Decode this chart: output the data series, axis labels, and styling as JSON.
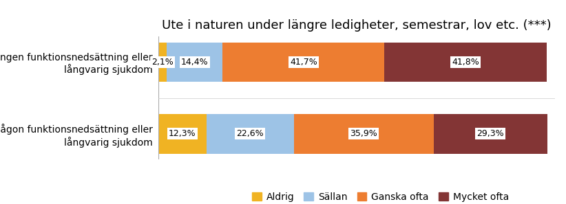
{
  "title": "Ute i naturen under längre ledigheter, semestrar, lov etc. (***)",
  "categories": [
    "Någon funktionsnedsättning eller\nlångvarig sjukdom",
    "Ingen funktionsnedsättning eller\nlångvarig sjukdom"
  ],
  "series_names": [
    "Aldrig",
    "Sällan",
    "Ganska ofta",
    "Mycket ofta"
  ],
  "series": {
    "Aldrig": [
      12.3,
      2.1
    ],
    "Sällan": [
      22.6,
      14.4
    ],
    "Ganska ofta": [
      35.9,
      41.7
    ],
    "Mycket ofta": [
      29.3,
      41.8
    ]
  },
  "colors": {
    "Aldrig": "#f0b323",
    "Sällan": "#9dc3e6",
    "Ganska ofta": "#ed7d31",
    "Mycket ofta": "#833535"
  },
  "labels": {
    "Aldrig": [
      "12,3%",
      "2,1%"
    ],
    "Sällan": [
      "22,6%",
      "14,4%"
    ],
    "Ganska ofta": [
      "35,9%",
      "41,7%"
    ],
    "Mycket ofta": [
      "29,3%",
      "41,8%"
    ]
  },
  "background_color": "#ffffff",
  "bar_height": 0.55,
  "title_fontsize": 13,
  "label_fontsize": 9,
  "legend_fontsize": 10,
  "ytick_fontsize": 10
}
